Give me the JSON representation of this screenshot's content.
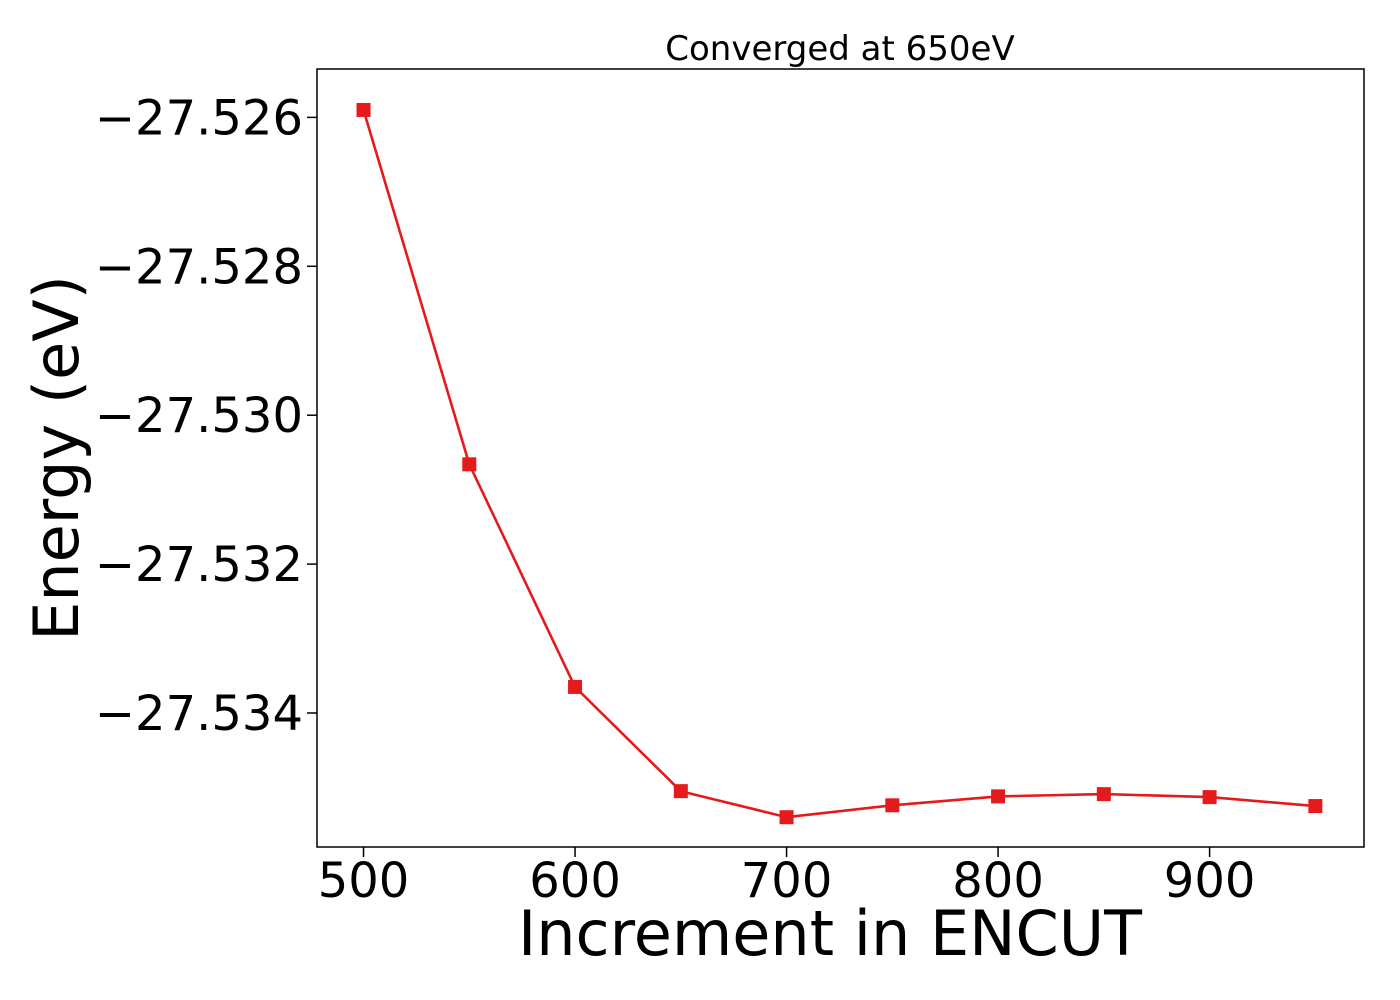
{
  "chart_data": {
    "type": "line",
    "title": "Converged at 650eV",
    "xlabel": "Increment in ENCUT",
    "ylabel": "Energy (eV)",
    "x": [
      500,
      550,
      600,
      650,
      700,
      750,
      800,
      850,
      900,
      950
    ],
    "series": [
      {
        "values": [
          -27.5259,
          -27.53066,
          -27.53365,
          -27.53505,
          -27.5354,
          -27.53524,
          -27.53512,
          -27.53509,
          -27.53513,
          -27.53525
        ],
        "color": "#e41a1c",
        "marker": "square"
      }
    ],
    "xlim": [
      478,
      973
    ],
    "ylim": [
      -27.5358,
      -27.52535
    ],
    "xticks": [
      500,
      600,
      700,
      800,
      900
    ],
    "xtick_labels": [
      "500",
      "600",
      "700",
      "800",
      "900"
    ],
    "yticks": [
      -27.526,
      -27.528,
      -27.53,
      -27.532,
      -27.534
    ],
    "ytick_labels": [
      "−27.526",
      "−27.528",
      "−27.530",
      "−27.532",
      "−27.534"
    ],
    "grid": false,
    "legend": "none"
  }
}
